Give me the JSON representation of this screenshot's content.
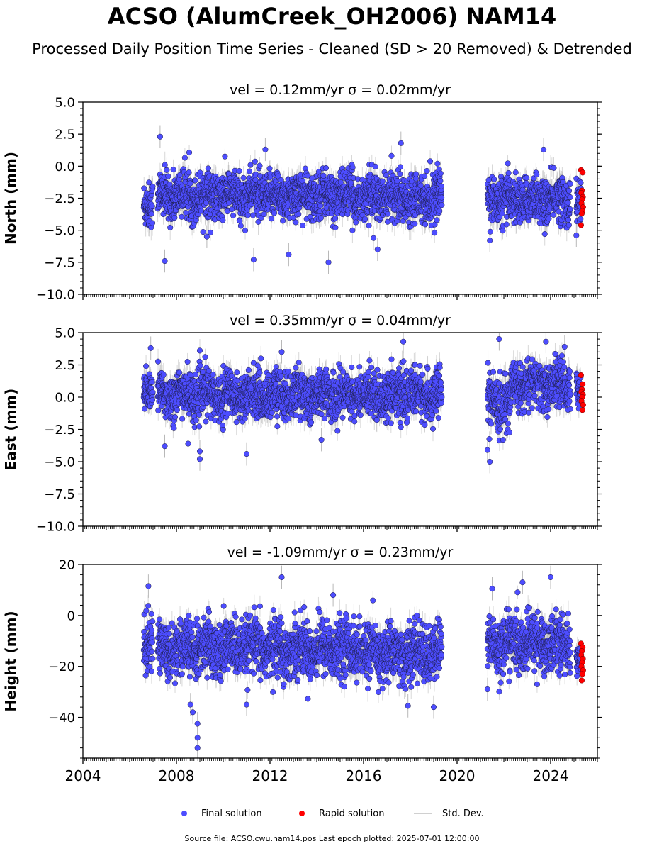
{
  "title": "ACSO (AlumCreek_OH2006) NAM14",
  "subtitle": "Processed Daily Position Time Series - Cleaned (SD > 20 Removed) & Detrended",
  "footer": "Source file: ACSO.cwu.nam14.pos  Last epoch plotted: 2025-07-01 12:00:00",
  "legend": {
    "final": "Final solution",
    "rapid": "Rapid solution",
    "stddev": "Std. Dev."
  },
  "colors": {
    "final": "#4d4dff",
    "rapid": "#ff0000",
    "errorbar": "#b8b8b8",
    "marker_edge": "#1a1a40"
  },
  "chart_data": [
    {
      "type": "scatter",
      "panel": "north",
      "title": "vel = 0.12mm/yr   σ = 0.02mm/yr",
      "xlabel": "",
      "ylabel": "North (mm)",
      "xlim": [
        2004.0,
        2026.0
      ],
      "ylim": [
        -10.0,
        5.0
      ],
      "yticks": [
        "5.0",
        "2.5",
        "0.0",
        "−2.5",
        "−5.0",
        "−7.5",
        "−10.0"
      ],
      "ytick_values": [
        5.0,
        2.5,
        0.0,
        -2.5,
        -5.0,
        -7.5,
        -10.0
      ],
      "series": [
        {
          "name": "Final solution",
          "segments": [
            {
              "x": [
                2006.6,
                2006.99
              ],
              "mean": -2.8,
              "spread": 0.9
            },
            {
              "x": [
                2007.2,
                2015.9
              ],
              "mean": -2.3,
              "spread": 0.9
            },
            {
              "x": [
                2015.95,
                2019.35
              ],
              "mean": -2.4,
              "spread": 0.9
            },
            {
              "x": [
                2021.3,
                2024.85
              ],
              "mean": -2.6,
              "spread": 0.9
            },
            {
              "x": [
                2025.1,
                2025.3
              ],
              "mean": -3.0,
              "spread": 0.9
            }
          ],
          "outliers": [
            {
              "x": 2007.5,
              "y": -7.4
            },
            {
              "x": 2011.3,
              "y": -7.3
            },
            {
              "x": 2014.5,
              "y": -7.5
            },
            {
              "x": 2012.8,
              "y": -6.9
            },
            {
              "x": 2016.6,
              "y": -6.5
            },
            {
              "x": 2007.3,
              "y": 2.3
            },
            {
              "x": 2011.8,
              "y": 1.3
            },
            {
              "x": 2017.6,
              "y": 1.8
            },
            {
              "x": 2023.7,
              "y": 1.3
            },
            {
              "x": 2025.1,
              "y": -5.4
            },
            {
              "x": 2021.4,
              "y": -5.8
            },
            {
              "x": 2009.3,
              "y": -5.5
            }
          ]
        },
        {
          "name": "Rapid solution",
          "x_range": [
            2025.3,
            2025.4
          ],
          "y": [
            -0.3,
            -0.5,
            -1.9,
            -2.1,
            -2.4,
            -2.6,
            -2.9,
            -3.2,
            -3.5,
            -3.7,
            -4.6
          ]
        }
      ]
    },
    {
      "type": "scatter",
      "panel": "east",
      "title": "vel = 0.35mm/yr   σ = 0.04mm/yr",
      "xlabel": "",
      "ylabel": "East (mm)",
      "xlim": [
        2004.0,
        2026.0
      ],
      "ylim": [
        -10.0,
        5.0
      ],
      "yticks": [
        "5.0",
        "2.5",
        "0.0",
        "−2.5",
        "−5.0",
        "−7.5",
        "−10.0"
      ],
      "ytick_values": [
        5.0,
        2.5,
        0.0,
        -2.5,
        -5.0,
        -7.5,
        -10.0
      ],
      "series": [
        {
          "name": "Final solution",
          "segments": [
            {
              "x": [
                2006.6,
                2006.99
              ],
              "mean": 0.6,
              "spread": 0.8
            },
            {
              "x": [
                2007.2,
                2015.9
              ],
              "mean": 0.2,
              "spread": 0.9
            },
            {
              "x": [
                2015.95,
                2019.35
              ],
              "mean": 0.2,
              "spread": 0.9
            },
            {
              "x": [
                2021.3,
                2022.3
              ],
              "mean": -0.5,
              "spread": 1.0
            },
            {
              "x": [
                2022.3,
                2024.85
              ],
              "mean": 0.9,
              "spread": 0.9
            },
            {
              "x": [
                2025.1,
                2025.3
              ],
              "mean": 0.5,
              "spread": 0.7
            }
          ],
          "outliers": [
            {
              "x": 2007.5,
              "y": -3.8
            },
            {
              "x": 2008.5,
              "y": -3.6
            },
            {
              "x": 2009.0,
              "y": -4.8
            },
            {
              "x": 2009.0,
              "y": -4.2
            },
            {
              "x": 2011.0,
              "y": -4.4
            },
            {
              "x": 2021.4,
              "y": -5.0
            },
            {
              "x": 2021.3,
              "y": -4.1
            },
            {
              "x": 2017.7,
              "y": 4.3
            },
            {
              "x": 2021.8,
              "y": 4.5
            },
            {
              "x": 2024.6,
              "y": 3.9
            },
            {
              "x": 2023.8,
              "y": 4.3
            },
            {
              "x": 2006.9,
              "y": 3.8
            },
            {
              "x": 2012.5,
              "y": 3.5
            },
            {
              "x": 2014.2,
              "y": -3.3
            }
          ]
        },
        {
          "name": "Rapid solution",
          "x_range": [
            2025.3,
            2025.4
          ],
          "y": [
            1.7,
            1.0,
            0.6,
            0.4,
            0.2,
            0.0,
            -0.3,
            -0.6,
            -1.0
          ]
        }
      ]
    },
    {
      "type": "scatter",
      "panel": "height",
      "title": "vel = -1.09mm/yr   σ = 0.23mm/yr",
      "xlabel": "",
      "ylabel": "Height (mm)",
      "xlim": [
        2004.0,
        2026.0
      ],
      "ylim": [
        -56.0,
        20.0
      ],
      "yticks": [
        "20",
        "0",
        "−20",
        "−40"
      ],
      "ytick_values": [
        20,
        0,
        -20,
        -40
      ],
      "series": [
        {
          "name": "Final solution",
          "segments": [
            {
              "x": [
                2006.6,
                2006.99
              ],
              "mean": -9.0,
              "spread": 5.5
            },
            {
              "x": [
                2007.2,
                2015.9
              ],
              "mean": -13.0,
              "spread": 5.5
            },
            {
              "x": [
                2015.95,
                2019.35
              ],
              "mean": -15.0,
              "spread": 5.5
            },
            {
              "x": [
                2021.3,
                2024.85
              ],
              "mean": -11.0,
              "spread": 5.5
            },
            {
              "x": [
                2025.1,
                2025.3
              ],
              "mean": -18.0,
              "spread": 4.0
            }
          ],
          "outliers": [
            {
              "x": 2008.9,
              "y": -52.0
            },
            {
              "x": 2008.9,
              "y": -48.0
            },
            {
              "x": 2008.9,
              "y": -42.5
            },
            {
              "x": 2008.7,
              "y": -38.0
            },
            {
              "x": 2008.6,
              "y": -35.0
            },
            {
              "x": 2006.8,
              "y": 11.5
            },
            {
              "x": 2012.5,
              "y": 15.0
            },
            {
              "x": 2014.7,
              "y": 8.0
            },
            {
              "x": 2021.5,
              "y": 10.5
            },
            {
              "x": 2022.8,
              "y": 13.0
            },
            {
              "x": 2024.0,
              "y": 15.0
            },
            {
              "x": 2011.0,
              "y": -35.0
            },
            {
              "x": 2017.9,
              "y": -35.5
            },
            {
              "x": 2019.0,
              "y": -36.0
            },
            {
              "x": 2021.3,
              "y": -29.0
            }
          ]
        },
        {
          "name": "Rapid solution",
          "x_range": [
            2025.3,
            2025.4
          ],
          "y": [
            -11.0,
            -12.5,
            -14.0,
            -15.5,
            -17.0,
            -18.5,
            -20.0,
            -21.5,
            -23.0,
            -25.5
          ]
        }
      ]
    }
  ],
  "xticks": [
    "2004",
    "2008",
    "2012",
    "2016",
    "2020",
    "2024"
  ],
  "xtick_values": [
    2004,
    2008,
    2012,
    2016,
    2020,
    2024
  ]
}
